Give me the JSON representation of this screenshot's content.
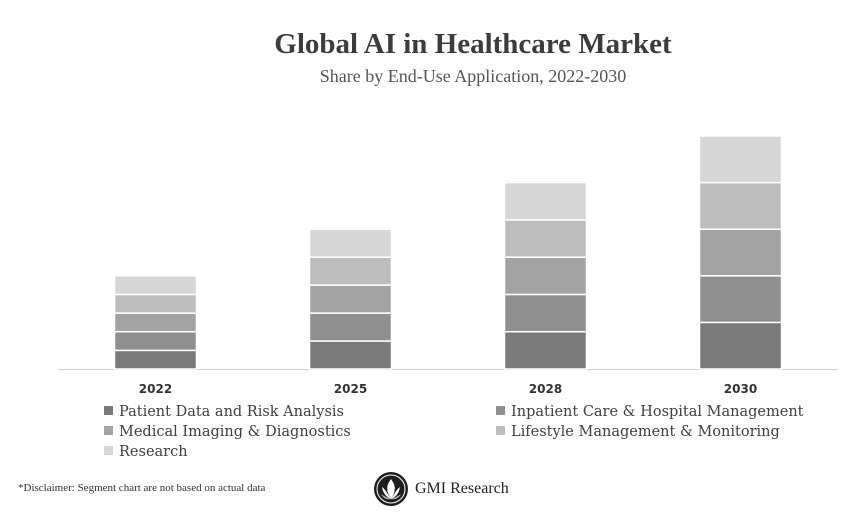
{
  "header": {
    "title": "Global AI in Healthcare Market",
    "subtitle": "Share by End-Use Application, 2022-2030"
  },
  "chart_data": {
    "type": "bar",
    "stacked": true,
    "title": "Global AI in Healthcare Market",
    "subtitle": "Share by End-Use Application, 2022-2030",
    "categories": [
      "2022",
      "2025",
      "2028",
      "2030"
    ],
    "series": [
      {
        "name": "Patient Data and Risk Analysis",
        "color": "#7a7a7a",
        "values": [
          1,
          1.5,
          2,
          2.5
        ]
      },
      {
        "name": "Inpatient Care & Hospital Management",
        "color": "#8f8f8f",
        "values": [
          1,
          1.5,
          2,
          2.5
        ]
      },
      {
        "name": "Medical Imaging & Diagnostics",
        "color": "#a3a3a3",
        "values": [
          1,
          1.5,
          2,
          2.5
        ]
      },
      {
        "name": "Lifestyle Management & Monitoring",
        "color": "#bdbdbd",
        "values": [
          1,
          1.5,
          2,
          2.5
        ]
      },
      {
        "name": "Research",
        "color": "#d6d6d6",
        "values": [
          1,
          1.5,
          2,
          2.5
        ]
      }
    ],
    "xlabel": "",
    "ylabel": "",
    "ylim": [
      0,
      12.5
    ],
    "grid": false,
    "legend": "bottom"
  },
  "footer": {
    "disclaimer": "*Disclaimer:  Segment chart are not based on actual data",
    "brand": "GMI Research",
    "logo_icon": "gmi-research-logo-icon"
  }
}
